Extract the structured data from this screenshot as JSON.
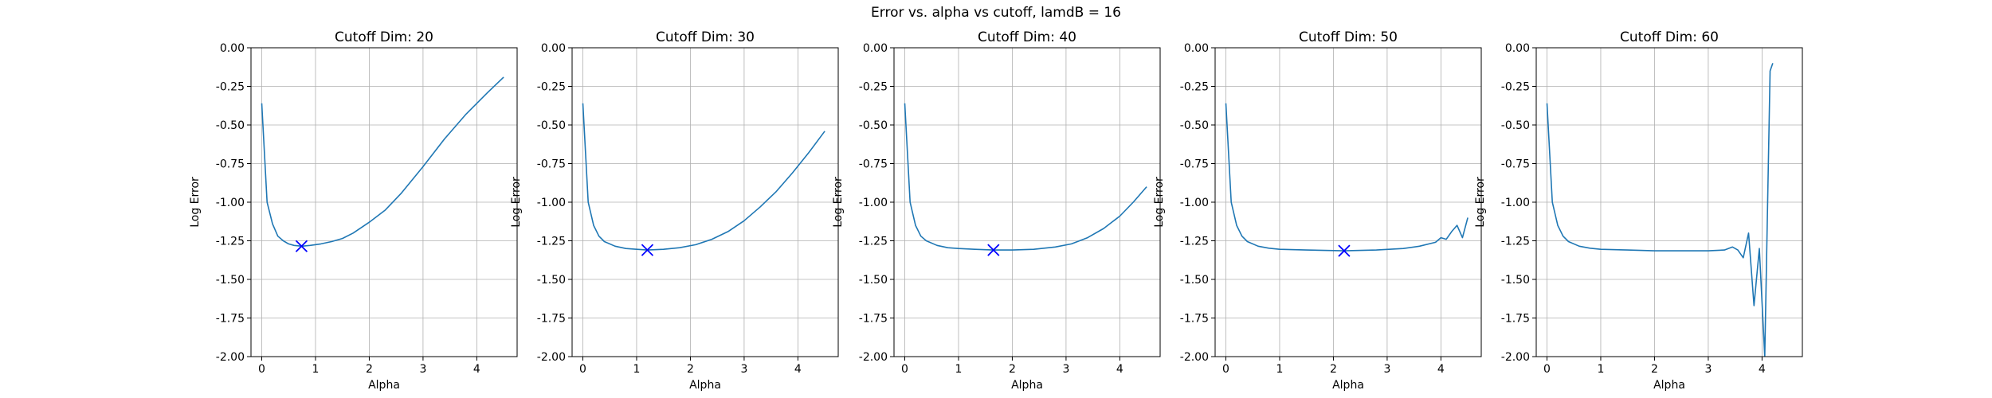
{
  "figure_title": "Error vs. alpha vs cutoff, lamdB = 16",
  "chart_data": [
    {
      "type": "line",
      "title": "Cutoff Dim: 20",
      "xlabel": "Alpha",
      "ylabel": "Log Error",
      "xlim": [
        -0.2,
        4.75
      ],
      "ylim": [
        -2.0,
        0.0
      ],
      "xticks": [
        0,
        1,
        2,
        3,
        4
      ],
      "yticks": [
        -2.0,
        -1.75,
        -1.5,
        -1.25,
        -1.0,
        -0.75,
        -0.5,
        -0.25,
        0.0
      ],
      "grid": true,
      "series_color": "#1f77b4",
      "marker_color": "#0000ff",
      "x": [
        0.0,
        0.1,
        0.2,
        0.3,
        0.4,
        0.5,
        0.6,
        0.75,
        0.9,
        1.1,
        1.3,
        1.5,
        1.7,
        2.0,
        2.3,
        2.6,
        3.0,
        3.4,
        3.8,
        4.2,
        4.5
      ],
      "y": [
        -0.36,
        -1.0,
        -1.14,
        -1.22,
        -1.25,
        -1.27,
        -1.28,
        -1.285,
        -1.28,
        -1.27,
        -1.255,
        -1.235,
        -1.2,
        -1.13,
        -1.05,
        -0.94,
        -0.77,
        -0.59,
        -0.43,
        -0.29,
        -0.19
      ],
      "minimum": {
        "x": 0.74,
        "y": -1.285
      }
    },
    {
      "type": "line",
      "title": "Cutoff Dim: 30",
      "xlabel": "Alpha",
      "ylabel": "Log Error",
      "xlim": [
        -0.2,
        4.75
      ],
      "ylim": [
        -2.0,
        0.0
      ],
      "xticks": [
        0,
        1,
        2,
        3,
        4
      ],
      "yticks": [
        -2.0,
        -1.75,
        -1.5,
        -1.25,
        -1.0,
        -0.75,
        -0.5,
        -0.25,
        0.0
      ],
      "grid": true,
      "series_color": "#1f77b4",
      "marker_color": "#0000ff",
      "x": [
        0.0,
        0.1,
        0.2,
        0.3,
        0.4,
        0.6,
        0.8,
        1.0,
        1.2,
        1.5,
        1.8,
        2.1,
        2.4,
        2.7,
        3.0,
        3.3,
        3.6,
        3.9,
        4.2,
        4.5
      ],
      "y": [
        -0.36,
        -1.0,
        -1.15,
        -1.22,
        -1.255,
        -1.285,
        -1.3,
        -1.305,
        -1.31,
        -1.305,
        -1.295,
        -1.275,
        -1.24,
        -1.19,
        -1.12,
        -1.03,
        -0.93,
        -0.81,
        -0.68,
        -0.54
      ],
      "minimum": {
        "x": 1.2,
        "y": -1.31
      }
    },
    {
      "type": "line",
      "title": "Cutoff Dim: 40",
      "xlabel": "Alpha",
      "ylabel": "Log Error",
      "xlim": [
        -0.2,
        4.75
      ],
      "ylim": [
        -2.0,
        0.0
      ],
      "xticks": [
        0,
        1,
        2,
        3,
        4
      ],
      "yticks": [
        -2.0,
        -1.75,
        -1.5,
        -1.25,
        -1.0,
        -0.75,
        -0.5,
        -0.25,
        0.0
      ],
      "grid": true,
      "series_color": "#1f77b4",
      "marker_color": "#0000ff",
      "x": [
        0.0,
        0.1,
        0.2,
        0.3,
        0.4,
        0.6,
        0.8,
        1.0,
        1.3,
        1.65,
        2.0,
        2.4,
        2.8,
        3.1,
        3.4,
        3.7,
        4.0,
        4.25,
        4.5
      ],
      "y": [
        -0.36,
        -1.0,
        -1.15,
        -1.22,
        -1.25,
        -1.28,
        -1.295,
        -1.3,
        -1.305,
        -1.31,
        -1.31,
        -1.305,
        -1.29,
        -1.27,
        -1.23,
        -1.17,
        -1.09,
        -1.0,
        -0.9
      ],
      "minimum": {
        "x": 1.65,
        "y": -1.31
      }
    },
    {
      "type": "line",
      "title": "Cutoff Dim: 50",
      "xlabel": "Alpha",
      "ylabel": "Log Error",
      "xlim": [
        -0.2,
        4.75
      ],
      "ylim": [
        -2.0,
        0.0
      ],
      "xticks": [
        0,
        1,
        2,
        3,
        4
      ],
      "yticks": [
        -2.0,
        -1.75,
        -1.5,
        -1.25,
        -1.0,
        -0.75,
        -0.5,
        -0.25,
        0.0
      ],
      "grid": true,
      "series_color": "#1f77b4",
      "marker_color": "#0000ff",
      "x": [
        0.0,
        0.1,
        0.2,
        0.3,
        0.4,
        0.6,
        0.8,
        1.0,
        1.5,
        2.2,
        2.8,
        3.3,
        3.6,
        3.9,
        4.0,
        4.1,
        4.2,
        4.3,
        4.4,
        4.5
      ],
      "y": [
        -0.36,
        -1.0,
        -1.15,
        -1.22,
        -1.255,
        -1.285,
        -1.298,
        -1.305,
        -1.31,
        -1.315,
        -1.31,
        -1.3,
        -1.285,
        -1.26,
        -1.23,
        -1.24,
        -1.19,
        -1.15,
        -1.23,
        -1.1
      ],
      "minimum": {
        "x": 2.2,
        "y": -1.315
      }
    },
    {
      "type": "line",
      "title": "Cutoff Dim: 60",
      "xlabel": "Alpha",
      "ylabel": "Log Error",
      "xlim": [
        -0.2,
        4.75
      ],
      "ylim": [
        -2.0,
        0.0
      ],
      "xticks": [
        0,
        1,
        2,
        3,
        4
      ],
      "yticks": [
        -2.0,
        -1.75,
        -1.5,
        -1.25,
        -1.0,
        -0.75,
        -0.5,
        -0.25,
        0.0
      ],
      "grid": true,
      "series_color": "#1f77b4",
      "x": [
        0.0,
        0.1,
        0.2,
        0.3,
        0.4,
        0.6,
        0.8,
        1.0,
        1.5,
        2.0,
        2.5,
        3.0,
        3.3,
        3.45,
        3.55,
        3.65,
        3.75,
        3.85,
        3.95,
        4.05,
        4.15,
        4.2
      ],
      "y": [
        -0.36,
        -1.0,
        -1.15,
        -1.22,
        -1.255,
        -1.285,
        -1.298,
        -1.305,
        -1.31,
        -1.315,
        -1.315,
        -1.315,
        -1.31,
        -1.29,
        -1.31,
        -1.36,
        -1.2,
        -1.67,
        -1.3,
        -2.0,
        -0.15,
        -0.1
      ]
    }
  ]
}
